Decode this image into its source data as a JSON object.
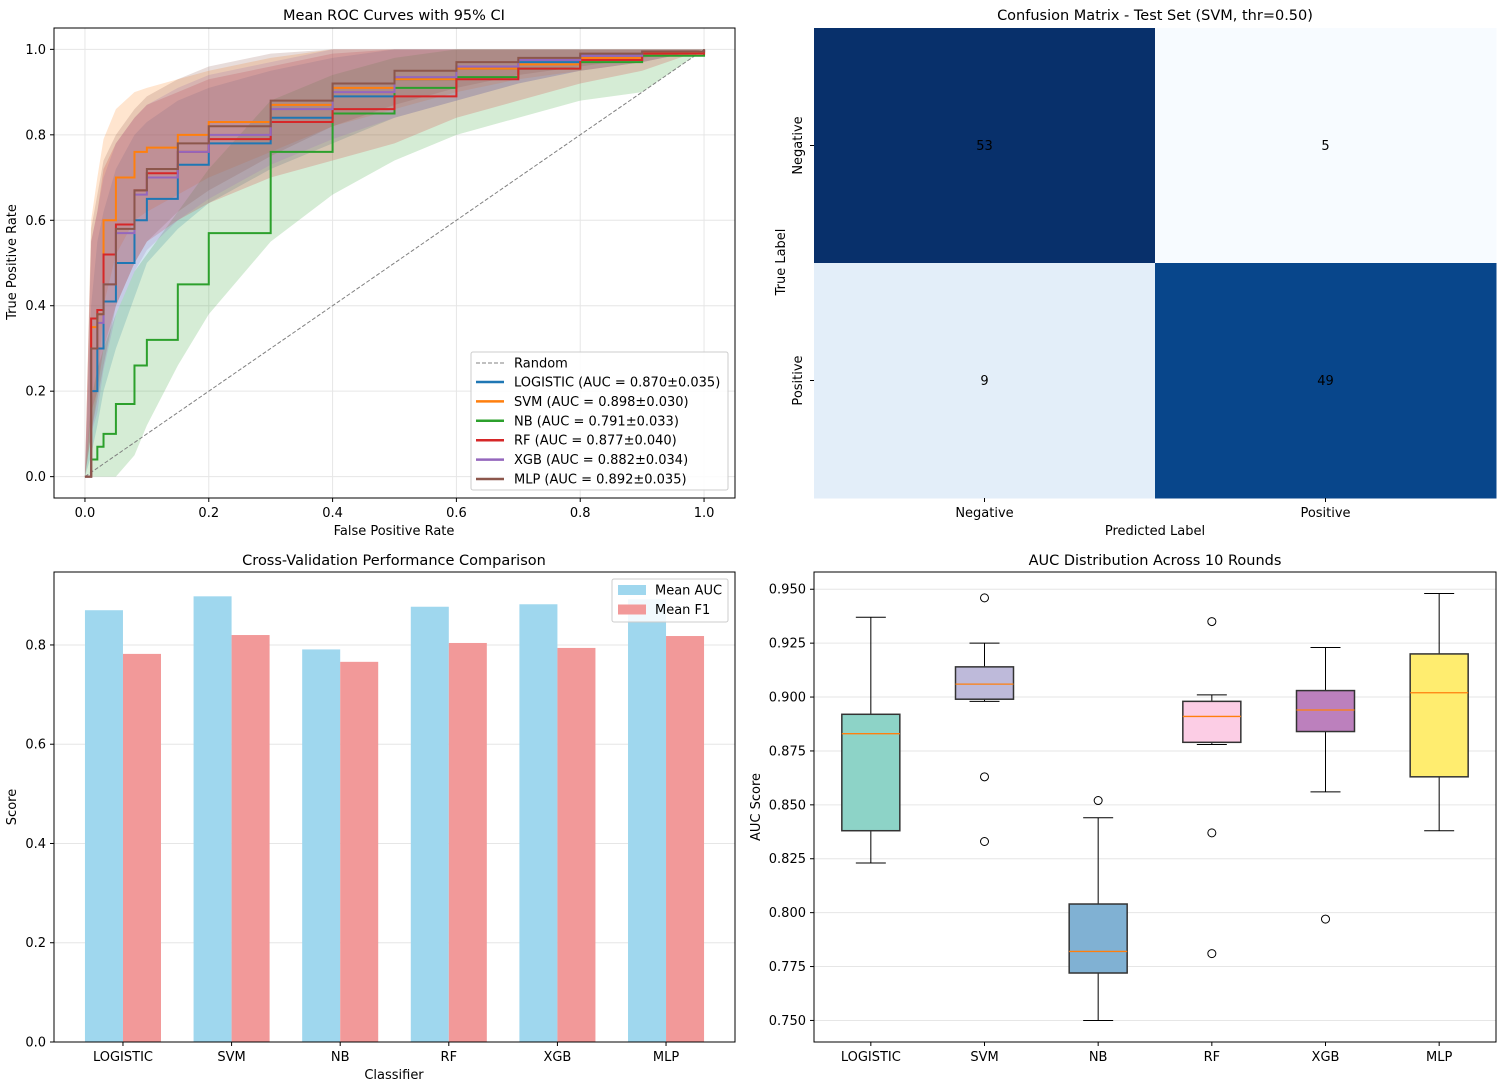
{
  "chart_data": [
    {
      "type": "line",
      "title": "Mean ROC Curves with 95% CI",
      "xlabel": "False Positive Rate",
      "ylabel": "True Positive Rate",
      "xlim": [
        -0.05,
        1.05
      ],
      "ylim": [
        -0.05,
        1.05
      ],
      "xticks": [
        "0.0",
        "0.2",
        "0.4",
        "0.6",
        "0.8",
        "1.0"
      ],
      "yticks": [
        "0.0",
        "0.2",
        "0.4",
        "0.6",
        "0.8",
        "1.0"
      ],
      "grid": true,
      "legend_position": "lower-right",
      "x": [
        0,
        0.01,
        0.02,
        0.03,
        0.05,
        0.08,
        0.1,
        0.15,
        0.2,
        0.3,
        0.4,
        0.5,
        0.6,
        0.7,
        0.8,
        0.9,
        1.0
      ],
      "reference": {
        "name": "Random",
        "color": "#808080",
        "x": [
          0,
          1
        ],
        "y": [
          0,
          1
        ]
      },
      "series": [
        {
          "name": "LOGISTIC (AUC = 0.870±0.035)",
          "color": "#1f77b4",
          "y": [
            0,
            0.2,
            0.3,
            0.41,
            0.5,
            0.6,
            0.65,
            0.73,
            0.78,
            0.84,
            0.89,
            0.93,
            0.955,
            0.97,
            0.985,
            0.995,
            1
          ],
          "ci_lower": [
            0,
            0.05,
            0.12,
            0.2,
            0.3,
            0.42,
            0.5,
            0.58,
            0.64,
            0.72,
            0.78,
            0.84,
            0.88,
            0.92,
            0.95,
            0.97,
            1
          ],
          "ci_upper": [
            0,
            0.4,
            0.55,
            0.62,
            0.72,
            0.8,
            0.83,
            0.88,
            0.91,
            0.95,
            0.98,
            1,
            1,
            1,
            1,
            1,
            1
          ]
        },
        {
          "name": "SVM (AUC = 0.898±0.030)",
          "color": "#ff7f0e",
          "y": [
            0,
            0.35,
            0.38,
            0.6,
            0.7,
            0.76,
            0.77,
            0.8,
            0.83,
            0.87,
            0.91,
            0.93,
            0.955,
            0.965,
            0.98,
            0.99,
            1
          ],
          "ci_lower": [
            0,
            0.1,
            0.2,
            0.4,
            0.52,
            0.6,
            0.62,
            0.66,
            0.7,
            0.76,
            0.82,
            0.86,
            0.9,
            0.93,
            0.95,
            0.97,
            1
          ],
          "ci_upper": [
            0,
            0.6,
            0.7,
            0.79,
            0.86,
            0.9,
            0.91,
            0.93,
            0.95,
            0.98,
            1,
            1,
            1,
            1,
            1,
            1,
            1
          ]
        },
        {
          "name": "NB (AUC = 0.791±0.033)",
          "color": "#2ca02c",
          "y": [
            0,
            0.04,
            0.07,
            0.1,
            0.17,
            0.26,
            0.32,
            0.45,
            0.57,
            0.76,
            0.85,
            0.91,
            0.935,
            0.955,
            0.97,
            0.985,
            1
          ],
          "ci_lower": [
            0,
            0,
            0,
            0,
            0,
            0.05,
            0.12,
            0.26,
            0.38,
            0.55,
            0.66,
            0.74,
            0.8,
            0.84,
            0.88,
            0.9,
            1
          ],
          "ci_upper": [
            0,
            0.18,
            0.25,
            0.3,
            0.38,
            0.48,
            0.52,
            0.62,
            0.72,
            0.88,
            0.94,
            0.98,
            1,
            1,
            1,
            1,
            1
          ]
        },
        {
          "name": "RF (AUC = 0.877±0.040)",
          "color": "#d62728",
          "y": [
            0,
            0.37,
            0.39,
            0.52,
            0.59,
            0.67,
            0.71,
            0.76,
            0.79,
            0.83,
            0.86,
            0.89,
            0.93,
            0.955,
            0.975,
            0.99,
            1
          ],
          "ci_lower": [
            0,
            0.15,
            0.2,
            0.3,
            0.4,
            0.5,
            0.55,
            0.6,
            0.64,
            0.7,
            0.74,
            0.78,
            0.84,
            0.88,
            0.92,
            0.95,
            1
          ],
          "ci_upper": [
            0,
            0.55,
            0.62,
            0.72,
            0.78,
            0.84,
            0.87,
            0.9,
            0.93,
            0.96,
            0.99,
            1,
            1,
            1,
            1,
            1,
            1
          ]
        },
        {
          "name": "XGB (AUC = 0.882±0.034)",
          "color": "#9467bd",
          "y": [
            0,
            0.3,
            0.36,
            0.45,
            0.57,
            0.66,
            0.7,
            0.76,
            0.8,
            0.86,
            0.9,
            0.935,
            0.96,
            0.975,
            0.985,
            0.995,
            1
          ],
          "ci_lower": [
            0,
            0.1,
            0.15,
            0.25,
            0.38,
            0.48,
            0.53,
            0.6,
            0.65,
            0.73,
            0.79,
            0.84,
            0.88,
            0.92,
            0.95,
            0.97,
            1
          ],
          "ci_upper": [
            0,
            0.55,
            0.62,
            0.7,
            0.78,
            0.84,
            0.87,
            0.91,
            0.94,
            0.97,
            1,
            1,
            1,
            1,
            1,
            1,
            1
          ]
        },
        {
          "name": "MLP (AUC = 0.892±0.035)",
          "color": "#8c564b",
          "y": [
            0,
            0.3,
            0.38,
            0.45,
            0.58,
            0.67,
            0.72,
            0.78,
            0.82,
            0.88,
            0.92,
            0.95,
            0.97,
            0.98,
            0.99,
            0.995,
            1
          ],
          "ci_lower": [
            0,
            0.1,
            0.18,
            0.26,
            0.4,
            0.5,
            0.55,
            0.62,
            0.67,
            0.75,
            0.82,
            0.87,
            0.91,
            0.94,
            0.96,
            0.98,
            1
          ],
          "ci_upper": [
            0,
            0.58,
            0.66,
            0.74,
            0.8,
            0.86,
            0.89,
            0.93,
            0.96,
            0.99,
            1,
            1,
            1,
            1,
            1,
            1,
            1
          ]
        }
      ]
    },
    {
      "type": "heatmap",
      "title": "Confusion Matrix - Test Set (SVM, thr=0.50)",
      "xlabel": "Predicted Label",
      "ylabel": "True Label",
      "xticks": [
        "Negative",
        "Positive"
      ],
      "yticks": [
        "Negative",
        "Positive"
      ],
      "values": [
        [
          53,
          5
        ],
        [
          9,
          49
        ]
      ],
      "colors": [
        [
          "#08306b",
          "#f7fbff"
        ],
        [
          "#e3eef9",
          "#08468b"
        ]
      ],
      "text_colors": [
        [
          "#ffffff",
          "#000000"
        ],
        [
          "#000000",
          "#ffffff"
        ]
      ]
    },
    {
      "type": "bar",
      "title": "Cross-Validation Performance Comparison",
      "xlabel": "Classifier",
      "ylabel": "Score",
      "categories": [
        "LOGISTIC",
        "SVM",
        "NB",
        "RF",
        "XGB",
        "MLP"
      ],
      "ylim": [
        0,
        0.947
      ],
      "yticks": [
        "0.0",
        "0.2",
        "0.4",
        "0.6",
        "0.8"
      ],
      "grid": true,
      "legend_position": "top-right",
      "series": [
        {
          "name": "Mean AUC",
          "color": "#9fd7ee",
          "values": [
            0.87,
            0.898,
            0.791,
            0.877,
            0.882,
            0.892
          ]
        },
        {
          "name": "Mean F1",
          "color": "#f29999",
          "values": [
            0.782,
            0.82,
            0.766,
            0.804,
            0.794,
            0.818
          ]
        }
      ]
    },
    {
      "type": "box",
      "title": "AUC Distribution Across 10 Rounds",
      "xlabel": "",
      "ylabel": "AUC Score",
      "categories": [
        "LOGISTIC",
        "SVM",
        "NB",
        "RF",
        "XGB",
        "MLP"
      ],
      "ylim": [
        0.74,
        0.958
      ],
      "yticks": [
        "0.750",
        "0.775",
        "0.800",
        "0.825",
        "0.850",
        "0.875",
        "0.900",
        "0.925",
        "0.950"
      ],
      "grid": true,
      "median_color": "#ff7f0e",
      "boxes": [
        {
          "color": "#8dd3c7",
          "whislo": 0.823,
          "q1": 0.838,
          "med": 0.883,
          "q3": 0.892,
          "whishi": 0.937,
          "fliers": []
        },
        {
          "color": "#bebada",
          "whislo": 0.898,
          "q1": 0.899,
          "med": 0.906,
          "q3": 0.914,
          "whishi": 0.925,
          "fliers": [
            0.946,
            0.863,
            0.833
          ]
        },
        {
          "color": "#80b1d3",
          "whislo": 0.75,
          "q1": 0.772,
          "med": 0.782,
          "q3": 0.804,
          "whishi": 0.844,
          "fliers": [
            0.852
          ]
        },
        {
          "color": "#fccde5",
          "whislo": 0.878,
          "q1": 0.879,
          "med": 0.891,
          "q3": 0.898,
          "whishi": 0.901,
          "fliers": [
            0.935,
            0.837,
            0.781
          ]
        },
        {
          "color": "#bc80bd",
          "whislo": 0.856,
          "q1": 0.884,
          "med": 0.894,
          "q3": 0.903,
          "whishi": 0.923,
          "fliers": [
            0.797
          ]
        },
        {
          "color": "#ffed6f",
          "whislo": 0.838,
          "q1": 0.863,
          "med": 0.902,
          "q3": 0.92,
          "whishi": 0.948,
          "fliers": []
        }
      ]
    }
  ]
}
